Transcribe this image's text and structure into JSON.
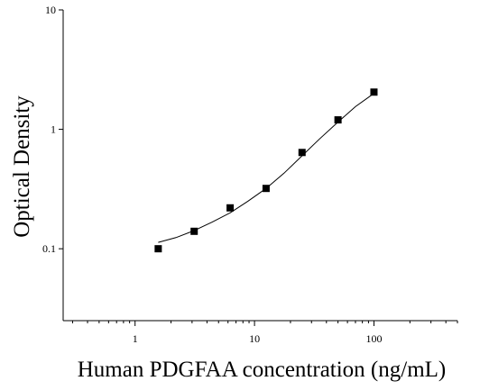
{
  "chart_data": {
    "type": "scatter",
    "x_label": "Human PDGFAA concentration (ng/mL)",
    "y_label": "Optical Density",
    "xscale": "log",
    "yscale": "log",
    "xlim": [
      0.25,
      500
    ],
    "ylim": [
      0.025,
      10
    ],
    "xticks": [
      1,
      10,
      100
    ],
    "xticks_minor": [
      0.3,
      0.4,
      0.5,
      0.6,
      0.7,
      0.8,
      0.9,
      2,
      3,
      4,
      5,
      6,
      7,
      8,
      9,
      20,
      30,
      40,
      50,
      60,
      70,
      80,
      90,
      200,
      300,
      400,
      500
    ],
    "yticks": [
      0.1,
      1,
      10
    ],
    "series": [
      {
        "kind": "points",
        "color": "#000000",
        "x": [
          1.5625,
          3.125,
          6.25,
          12.5,
          25,
          50,
          100
        ],
        "values": [
          0.1,
          0.14,
          0.22,
          0.32,
          0.64,
          1.2,
          2.05
        ]
      },
      {
        "kind": "curve",
        "color": "#000000",
        "x": [
          1.5625,
          2.2,
          3.125,
          4.4,
          6.25,
          8.8,
          12.5,
          17.7,
          25,
          35,
          50,
          70,
          100
        ],
        "values": [
          0.113,
          0.124,
          0.142,
          0.167,
          0.2,
          0.25,
          0.32,
          0.43,
          0.6,
          0.83,
          1.15,
          1.55,
          2.0
        ]
      }
    ]
  }
}
